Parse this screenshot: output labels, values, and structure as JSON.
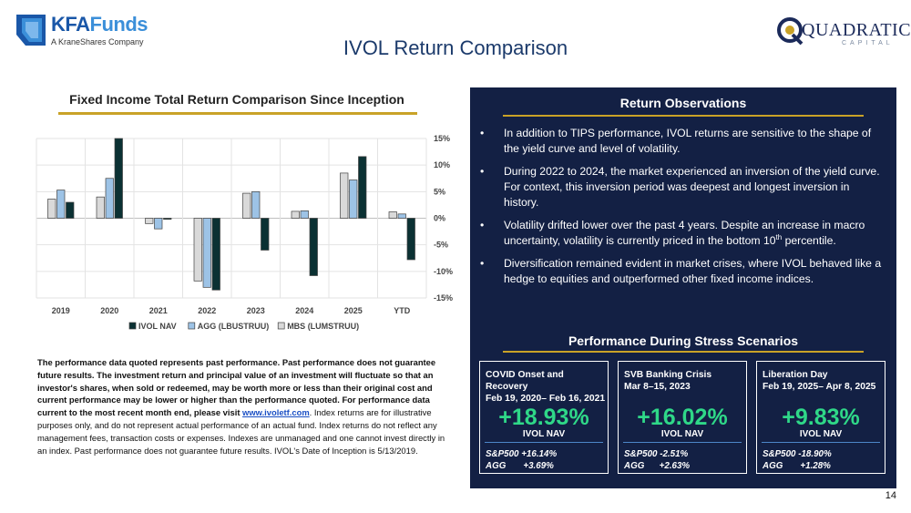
{
  "header": {
    "logo_left": {
      "brand_a": "KFA",
      "brand_b": "Funds",
      "tagline": "A KraneShares Company"
    },
    "title": "IVOL Return Comparison",
    "logo_right": {
      "name": "QUADRATIC",
      "sub": "CAPITAL"
    }
  },
  "chart_title": "Fixed Income Total Return Comparison Since Inception",
  "chart_data": {
    "type": "bar",
    "title": "Fixed Income Total Return Comparison Since Inception",
    "categories": [
      "2019",
      "2020",
      "2021",
      "2022",
      "2023",
      "2024",
      "2025",
      "YTD"
    ],
    "series": [
      {
        "name": "MBS (LUMSTRUU)",
        "color": "#d9d9d9",
        "values": [
          3.6,
          4.0,
          -1.0,
          -11.8,
          4.7,
          1.3,
          8.5,
          1.2
        ]
      },
      {
        "name": "AGG (LBUSTRUU)",
        "color": "#9dc3e6",
        "values": [
          5.3,
          7.5,
          -2.0,
          -13.0,
          5.0,
          1.4,
          7.2,
          0.8
        ]
      },
      {
        "name": "IVOL NAV",
        "color": "#0b3133",
        "values": [
          3.0,
          15.0,
          -0.2,
          -13.5,
          -6.0,
          -10.8,
          11.6,
          -7.8
        ]
      }
    ],
    "legend_order": [
      "IVOL NAV",
      "AGG (LBUSTRUU)",
      "MBS (LUMSTRUU)"
    ],
    "legend_position": "bottom",
    "yticks": [
      "15%",
      "10%",
      "5%",
      "0%",
      "-5%",
      "-10%",
      "-15%"
    ],
    "ylim": [
      -15,
      15
    ],
    "grid": true
  },
  "disclaimer": {
    "bold": "The performance data quoted represents past performance. Past performance does not guarantee future results. The investment return and principal value of an investment will fluctuate so that an investor's shares, when sold or redeemed, may be worth more or less than their original cost and current performance may be lower or higher than the performance quoted. For performance data current to the most recent month end, please visit ",
    "link": "www.ivoletf.com",
    "rest": ". Index returns are for illustrative purposes only, and do not represent actual performance of an actual fund. Index returns do not reflect any management fees, transaction costs or expenses. Indexes are unmanaged and one cannot invest directly in an index. Past performance does not guarantee future results.  IVOL's Date of Inception is 5/13/2019."
  },
  "observations": {
    "title": "Return Observations",
    "bullet": "•",
    "items": [
      {
        "text": "In addition to TIPS performance, IVOL returns are sensitive to the shape of the yield curve and level of volatility."
      },
      {
        "text": "During 2022 to 2024, the market experienced an inversion of the yield curve.  For context, this inversion period was deepest and longest inversion in history."
      },
      {
        "pre": "Volatility drifted lower over the past 4 years.  Despite an increase in macro uncertainty, volatility is currently priced in the bottom 10",
        "sup": "th",
        "post": " percentile."
      },
      {
        "text": "Diversification remained evident in market crises, where IVOL behaved like a hedge to equities and outperformed other fixed income indices."
      }
    ]
  },
  "stress": {
    "title": "Performance During Stress Scenarios",
    "cards": [
      {
        "name": "COVID Onset and Recovery",
        "dates": "Feb 19, 2020– Feb 16, 2021",
        "value": "+18.93%",
        "label": "IVOL NAV",
        "bench": "S&P500 +16.14%\nAGG       +3.69%"
      },
      {
        "name": "SVB Banking Crisis",
        "dates": "Mar 8–15, 2023",
        "value": "+16.02%",
        "label": "IVOL NAV",
        "bench": "S&P500 -2.51%\nAGG      +2.63%"
      },
      {
        "name": "Liberation Day",
        "dates": "Feb 19, 2025– Apr 8, 2025",
        "value": "+9.83%",
        "label": "IVOL NAV",
        "bench": "S&P500 -18.90%\nAGG       +1.28%"
      }
    ]
  },
  "page_number": "14"
}
